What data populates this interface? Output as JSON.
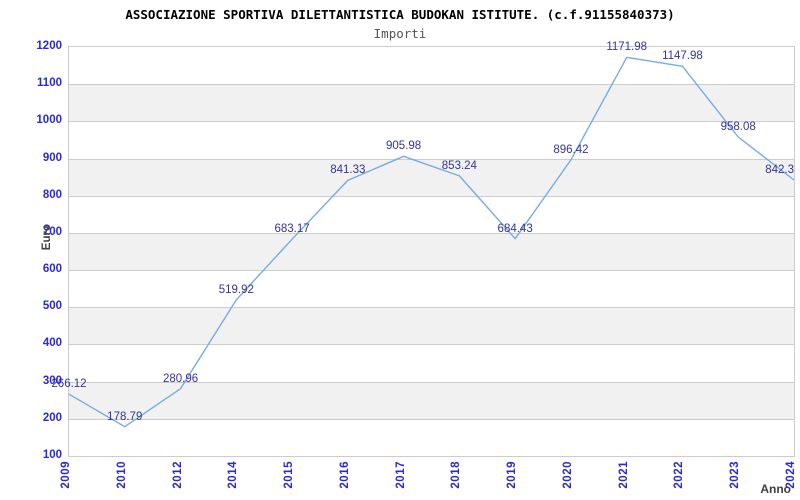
{
  "chart_data": {
    "type": "line",
    "title": "ASSOCIAZIONE SPORTIVA DILETTANTISTICA BUDOKAN ISTITUTE. (c.f.91155840373)",
    "subtitle": "Importi",
    "xlabel": "Anno",
    "ylabel": "Euro",
    "categories": [
      "2009",
      "2010",
      "2012",
      "2014",
      "2015",
      "2016",
      "2017",
      "2018",
      "2019",
      "2020",
      "2021",
      "2022",
      "2023",
      "2024"
    ],
    "values": [
      266.12,
      178.79,
      280.96,
      519.92,
      683.17,
      841.33,
      905.98,
      853.24,
      684.43,
      896.42,
      1171.98,
      1147.98,
      958.08,
      842.3
    ],
    "point_labels": [
      "266.12",
      "178.79",
      "280.96",
      "519.92",
      "683.17",
      "841.33",
      "905.98",
      "853.24",
      "684.43",
      "896.42",
      "1171.98",
      "1147.98",
      "958.08",
      "842.3"
    ],
    "y_ticks": [
      "100",
      "200",
      "300",
      "400",
      "500",
      "600",
      "700",
      "800",
      "900",
      "1000",
      "1100",
      "1200"
    ],
    "ylim": [
      100,
      1200
    ],
    "y_step": 100,
    "grid": true,
    "legend_position": "none",
    "colors": {
      "line": "#76abe3",
      "tick_label": "#2929d4",
      "point_label": "#333399",
      "grid_line": "#cccccc",
      "band_fill": "#f1f1f1",
      "plot_border": "#cccccc",
      "title": "#000000",
      "subtitle": "#555555",
      "axis_title": "#3d3d3d"
    }
  }
}
